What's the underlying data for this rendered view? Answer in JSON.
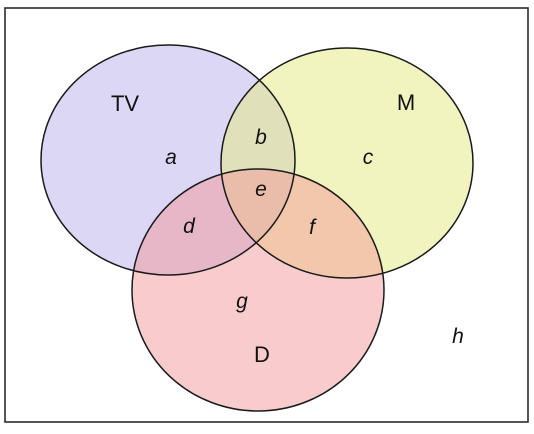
{
  "diagram": {
    "type": "venn",
    "colors": {
      "frame_stroke": "#2b2b2b",
      "circle_stroke": "#1a1a1a",
      "tv_fill": "#b8b0ec",
      "m_fill": "#e6ea80",
      "d_fill": "#f29a9a"
    },
    "sets": {
      "tv": {
        "label": "TV"
      },
      "m": {
        "label": "M"
      },
      "d": {
        "label": "D"
      }
    },
    "regions": {
      "a": "a",
      "b": "b",
      "c": "c",
      "d": "d",
      "e": "e",
      "f": "f",
      "g": "g",
      "h": "h"
    }
  }
}
